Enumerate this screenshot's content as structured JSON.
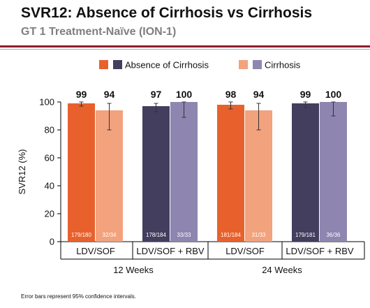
{
  "slide": {
    "title": "SVR12: Absence of Cirrhosis vs Cirrhosis",
    "subtitle": "GT 1 Treatment-Naïve (ION-1)",
    "footnote": "Error bars represent 95% confidence intervals."
  },
  "colors": {
    "absence_1": "#e8612c",
    "cirrhosis_1": "#f2a27d",
    "absence_2": "#433e5e",
    "cirrhosis_2": "#8e86b0",
    "rule": "#8b1e2b"
  },
  "chart_data": {
    "type": "bar",
    "ylabel": "SVR12 (%)",
    "xlabel": "",
    "ylim": [
      0,
      100
    ],
    "yticks": [
      0,
      20,
      40,
      60,
      80,
      100
    ],
    "grid": false,
    "legend_position": "top",
    "legend": [
      {
        "name": "Absence of Cirrhosis",
        "colors": [
          "#e8612c",
          "#433e5e"
        ]
      },
      {
        "name": "Cirrhosis",
        "colors": [
          "#f2a27d",
          "#8e86b0"
        ]
      }
    ],
    "groups": [
      {
        "name": "12 Weeks",
        "regimens": [
          "LDV/SOF",
          "LDV/SOF + RBV"
        ]
      },
      {
        "name": "24 Weeks",
        "regimens": [
          "LDV/SOF",
          "LDV/SOF + RBV"
        ]
      }
    ],
    "bars": [
      {
        "group": "12 Weeks",
        "regimen": "LDV/SOF",
        "series": "Absence of Cirrhosis",
        "value": 99,
        "label": "99",
        "n": "179/180",
        "ci": [
          97,
          100
        ],
        "color": "#e8612c"
      },
      {
        "group": "12 Weeks",
        "regimen": "LDV/SOF",
        "series": "Cirrhosis",
        "value": 94,
        "label": "94",
        "n": "32/34",
        "ci": [
          80,
          99
        ],
        "color": "#f2a27d"
      },
      {
        "group": "12 Weeks",
        "regimen": "LDV/SOF + RBV",
        "series": "Absence of Cirrhosis",
        "value": 97,
        "label": "97",
        "n": "178/184",
        "ci": [
          93,
          99
        ],
        "color": "#433e5e"
      },
      {
        "group": "12 Weeks",
        "regimen": "LDV/SOF + RBV",
        "series": "Cirrhosis",
        "value": 100,
        "label": "100",
        "n": "33/33",
        "ci": [
          89,
          100
        ],
        "color": "#8e86b0"
      },
      {
        "group": "24 Weeks",
        "regimen": "LDV/SOF",
        "series": "Absence of Cirrhosis",
        "value": 98,
        "label": "98",
        "n": "181/184",
        "ci": [
          95,
          100
        ],
        "color": "#e8612c"
      },
      {
        "group": "24 Weeks",
        "regimen": "LDV/SOF",
        "series": "Cirrhosis",
        "value": 94,
        "label": "94",
        "n": "31/33",
        "ci": [
          80,
          99
        ],
        "color": "#f2a27d"
      },
      {
        "group": "24 Weeks",
        "regimen": "LDV/SOF + RBV",
        "series": "Absence of Cirrhosis",
        "value": 99,
        "label": "99",
        "n": "179/181",
        "ci": [
          96,
          100
        ],
        "color": "#433e5e"
      },
      {
        "group": "24 Weeks",
        "regimen": "LDV/SOF + RBV",
        "series": "Cirrhosis",
        "value": 100,
        "label": "100",
        "n": "36/36",
        "ci": [
          90,
          100
        ],
        "color": "#8e86b0"
      }
    ]
  }
}
